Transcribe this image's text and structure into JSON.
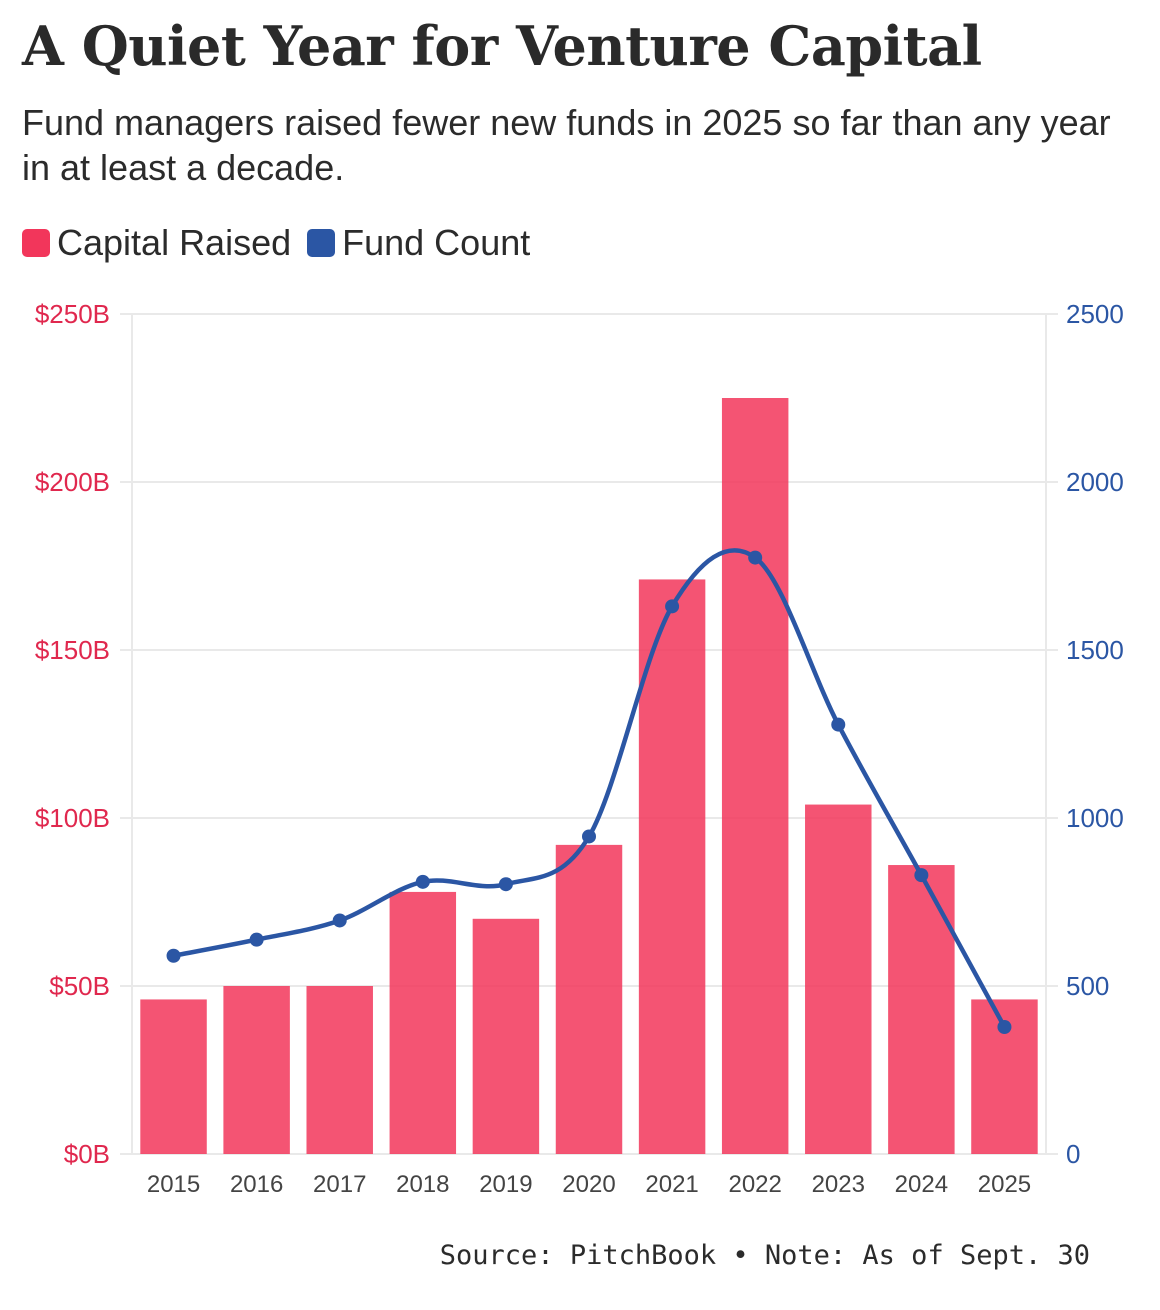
{
  "chart_data": {
    "type": "bar",
    "title": "A Quiet Year for Venture Capital",
    "subtitle": "Fund managers raised fewer new funds in 2025 so far than any year in at least a decade.",
    "categories": [
      "2015",
      "2016",
      "2017",
      "2018",
      "2019",
      "2020",
      "2021",
      "2022",
      "2023",
      "2024",
      "2025"
    ],
    "series": [
      {
        "name": "Capital Raised",
        "type": "bar",
        "axis": "left",
        "color": "#f2365b",
        "values": [
          46,
          50,
          50,
          78,
          70,
          92,
          171,
          225,
          104,
          86,
          46
        ]
      },
      {
        "name": "Fund Count",
        "type": "line",
        "axis": "right",
        "color": "#2b56a4",
        "values": [
          590,
          638,
          695,
          810,
          803,
          945,
          1630,
          1775,
          1278,
          830,
          378
        ]
      }
    ],
    "y_left": {
      "min": 0,
      "max": 250,
      "ticks": [
        "$0B",
        "$50B",
        "$100B",
        "$150B",
        "$200B",
        "$250B"
      ],
      "tick_values": [
        0,
        50,
        100,
        150,
        200,
        250
      ]
    },
    "y_right": {
      "min": 0,
      "max": 2500,
      "ticks": [
        "0",
        "500",
        "1000",
        "1500",
        "2000",
        "2500"
      ],
      "tick_values": [
        0,
        500,
        1000,
        1500,
        2000,
        2500
      ]
    },
    "legend": [
      "Capital Raised",
      "Fund Count"
    ],
    "source": "Source: PitchBook • Note: As of Sept. 30"
  },
  "colors": {
    "bar": "#f2365b",
    "line": "#2b56a4",
    "grid": "#e9e9e9",
    "axis_left": "#e0284e",
    "axis_right": "#2b56a4",
    "tick": "#444444"
  }
}
